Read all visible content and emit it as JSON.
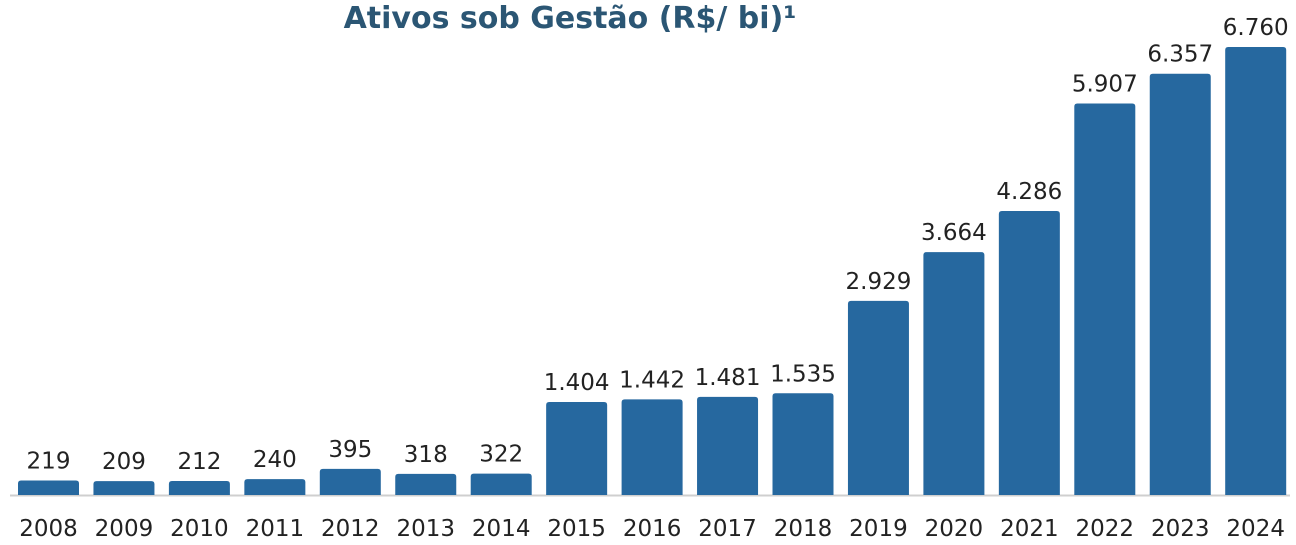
{
  "chart_data": {
    "type": "bar",
    "title": "Ativos sob Gestão (R$/ bi)¹",
    "categories": [
      "2008",
      "2009",
      "2010",
      "2011",
      "2012",
      "2013",
      "2014",
      "2015",
      "2016",
      "2017",
      "2018",
      "2019",
      "2020",
      "2021",
      "2022",
      "2023",
      "2024"
    ],
    "values": [
      219,
      209,
      212,
      240,
      395,
      318,
      322,
      1404,
      1442,
      1481,
      1535,
      2929,
      3664,
      4286,
      5907,
      6357,
      6760
    ],
    "value_labels": [
      "219",
      "209",
      "212",
      "240",
      "395",
      "318",
      "322",
      "1.404",
      "1.442",
      "1.481",
      "1.535",
      "2.929",
      "3.664",
      "4.286",
      "5.907",
      "6.357",
      "6.760"
    ],
    "color": "#26689f"
  }
}
